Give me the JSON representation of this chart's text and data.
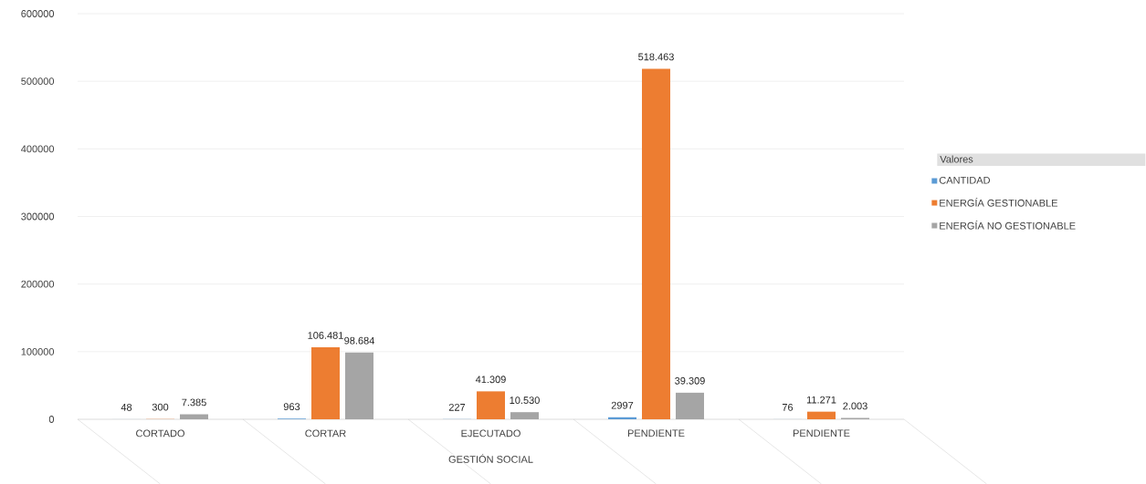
{
  "chart_data": {
    "type": "bar",
    "xlabel": "GESTIÓN SOCIAL",
    "legend_title": "Valores",
    "categories": [
      "CORTADO",
      "CORTAR",
      "EJECUTADO",
      "PENDIENTE",
      "PENDIENTE"
    ],
    "series": [
      {
        "name": "CANTIDAD",
        "color": "#5b9bd5",
        "values": [
          48,
          963,
          227,
          2997,
          76
        ],
        "value_labels": [
          "48",
          "963",
          "227",
          "2997",
          "76"
        ]
      },
      {
        "name": "ENERGÍA GESTIONABLE",
        "color": "#ed7d31",
        "values": [
          300,
          106481,
          41309,
          518463,
          11271
        ],
        "value_labels": [
          "300",
          "106.481",
          "41.309",
          "518.463",
          "11.271"
        ]
      },
      {
        "name": "ENERGÍA NO GESTIONABLE",
        "color": "#a5a5a5",
        "values": [
          7385,
          98684,
          10530,
          39309,
          2003
        ],
        "value_labels": [
          "7.385",
          "98.684",
          "10.530",
          "39.309",
          "2.003"
        ]
      }
    ],
    "ylim": [
      0,
      600000
    ],
    "yticks": [
      0,
      100000,
      200000,
      300000,
      400000,
      500000,
      600000
    ],
    "grid": "y",
    "legend": "right"
  }
}
